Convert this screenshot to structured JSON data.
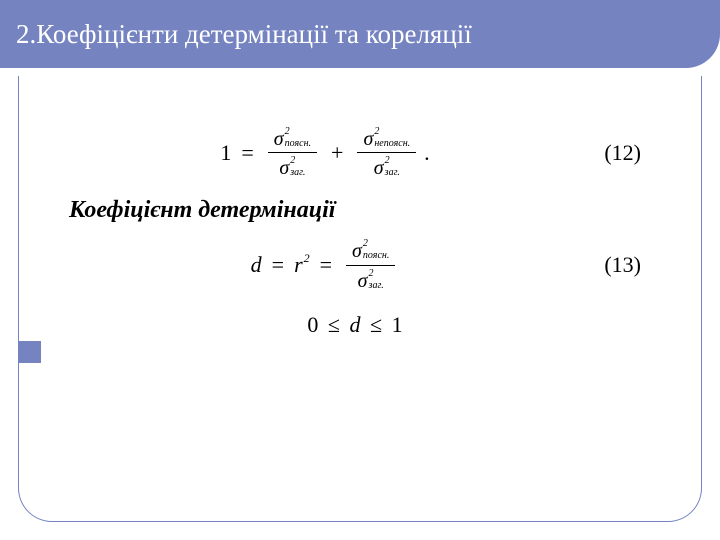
{
  "header": {
    "title": "2.Коефіцієнти детермінації та кореляції"
  },
  "equation12": {
    "lhs": "1",
    "equals": "=",
    "plus": "+",
    "dot": ".",
    "sigma": "σ",
    "exp": "2",
    "sub_poyasn": "поясн.",
    "sub_nepoyasn": "непоясн.",
    "sub_zag": "заг.",
    "number": "(12)"
  },
  "subheading": "Коефіцієнт детермінації",
  "equation13": {
    "d": "d",
    "equals": "=",
    "r": "r",
    "exp": "2",
    "sigma": "σ",
    "sub_poyasn": "поясн.",
    "sub_zag": "заг.",
    "number": "(13)"
  },
  "range": {
    "zero": "0",
    "leq": "≤",
    "d": "d",
    "one": "1"
  },
  "colors": {
    "accent": "#7583c1",
    "text": "#000000",
    "bg": "#ffffff"
  }
}
